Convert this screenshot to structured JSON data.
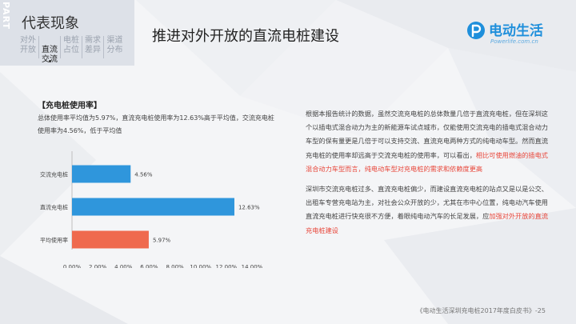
{
  "nav": {
    "part_label": "PART THREE",
    "section_title": "代表现象",
    "items": [
      {
        "label": "对外\n开放",
        "active": false
      },
      {
        "label": "直流\n交流",
        "active": true
      },
      {
        "label": "电桩\n占位",
        "active": false
      },
      {
        "label": "需求\n差异",
        "active": false
      },
      {
        "label": "渠道\n分布",
        "active": false
      }
    ]
  },
  "header": {
    "title": "推进对外开放的直流电桩建设",
    "logo_name": "电动生活",
    "logo_url": "Powerlife.com.cn",
    "logo_color": "#1f8fdb"
  },
  "left": {
    "heading": "【充电桩使用率】",
    "desc": "总体使用率平均值为5.97%，直流充电桩使用率为12.63%高于平均值，交流充电桩使用率为4.56%，低于平均值"
  },
  "chart_data": {
    "type": "bar",
    "orientation": "horizontal",
    "categories": [
      "交流充电桩",
      "直流充电桩",
      "平均使用率"
    ],
    "values": [
      4.56,
      12.63,
      5.97
    ],
    "value_labels": [
      "4.56%",
      "12.63%",
      "5.97%"
    ],
    "colors": [
      "#2f96dc",
      "#2f96dc",
      "#ef6a4e"
    ],
    "xlim": [
      0,
      14
    ],
    "ticks": [
      0,
      2,
      4,
      6,
      8,
      10,
      12,
      14
    ],
    "tick_labels": [
      "0.00%",
      "2.00%",
      "4.00%",
      "6.00%",
      "8.00%",
      "10.00%",
      "12.00%",
      "14.00%"
    ],
    "title": "",
    "xlabel": "",
    "ylabel": "",
    "grid": false
  },
  "right": {
    "p1_normal": "根据本报告统计的数据，虽然交流充电桩的总体数量几倍于直流充电桩，但在深圳这个以插电式混合动力为主的新能源车试点城市，仅能使用交流充电的插电式混合动力车型的保有量更是几倍于可以支持交流、直流充电两种方式的纯电动车型。然而直流充电桩的使用率却远高于交流充电桩的使用率，可以看出，",
    "p1_highlight": "相比可使用燃油的插电式混合动力车型而言，纯电动车型对充电桩的需求和依赖度更高",
    "p2_normal": "深圳市交流充电桩过多、直流充电桩偏少，而建设直流充电桩的站点又是以是公交、出租车专营充电站为主，对社会公众开放的少，尤其在市中心位置，纯电动汽车使用直流充电桩进行快充很不方便，着眼纯电动汽车的长足发展，应",
    "p2_highlight": "加强对外开放的直流充电桩建设",
    "highlight_color": "#e8463a"
  },
  "footer": {
    "text": "《电动生活深圳充电桩2017年度白皮书》-25"
  }
}
